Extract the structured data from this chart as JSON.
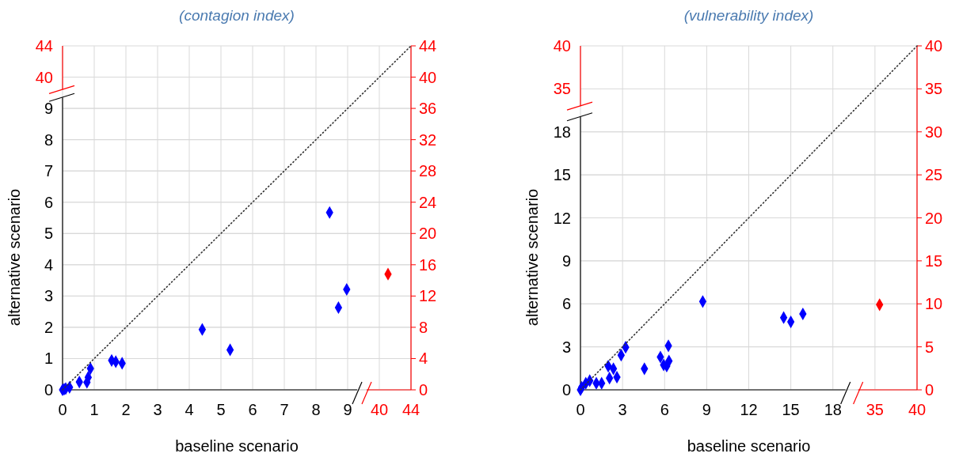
{
  "chart_data": [
    {
      "type": "scatter",
      "title": "(contagion index)",
      "xlabel": "baseline scenario",
      "y2label": "alternative scenario",
      "xlim": [
        0,
        11
      ],
      "xticks": [
        0,
        1,
        2,
        3,
        4,
        5,
        6,
        7,
        8,
        9
      ],
      "x2lim": [
        0,
        44
      ],
      "x2ticks": [
        40,
        44
      ],
      "ylim": [
        0,
        44
      ],
      "yticks": [
        0,
        4,
        8,
        12,
        16,
        20,
        24,
        28,
        32,
        36,
        40,
        44
      ],
      "y2lim": [
        0,
        11
      ],
      "y2ticks": [
        0,
        1,
        2,
        3,
        4,
        5,
        6,
        7,
        8,
        9
      ],
      "y3lim": [
        0,
        44
      ],
      "y3ticks": [
        40,
        44
      ],
      "grid": true,
      "marker": "diamond",
      "series": [
        {
          "type": "line",
          "color": "#333333",
          "line_style": "dotted",
          "marker": "none",
          "axis": "y2",
          "x": [
            0,
            11
          ],
          "values": [
            0,
            11
          ]
        },
        {
          "type": "scatter",
          "color": "#0000ff",
          "axis": "y2",
          "x": [
            0,
            0.05,
            0.1,
            0.22,
            0.53,
            0.77,
            0.81,
            0.88,
            1.55,
            1.68,
            1.88,
            4.41,
            5.29,
            8.43,
            8.71,
            8.97
          ],
          "values": [
            0,
            0.02,
            0.04,
            0.08,
            0.25,
            0.24,
            0.4,
            0.68,
            0.94,
            0.9,
            0.85,
            1.93,
            1.28,
            5.67,
            2.63,
            3.21
          ]
        },
        {
          "type": "scatter",
          "color": "#ff0000",
          "axis": "x2",
          "x": [
            41.1
          ],
          "values": [
            14.8
          ]
        }
      ]
    },
    {
      "type": "scatter",
      "title": "(vulnerability index)",
      "xlabel": "baseline scenario",
      "y2label": "alternative scenario",
      "xlim": [
        0,
        24
      ],
      "xticks": [
        0,
        3,
        6,
        9,
        12,
        15,
        18
      ],
      "x2lim": [
        0,
        40
      ],
      "x2ticks": [
        35,
        40
      ],
      "ylim": [
        0,
        40
      ],
      "yticks": [
        0,
        5,
        10,
        15,
        20,
        25,
        30,
        35,
        40
      ],
      "y2lim": [
        0,
        24
      ],
      "y2ticks": [
        0,
        3,
        6,
        9,
        12,
        15,
        18
      ],
      "y3lim": [
        0,
        40
      ],
      "y3ticks": [
        35,
        40
      ],
      "grid": true,
      "marker": "diamond",
      "series": [
        {
          "type": "line",
          "color": "#333333",
          "line_style": "dotted",
          "marker": "none",
          "axis": "y2",
          "x": [
            0,
            24
          ],
          "values": [
            0,
            24
          ]
        },
        {
          "type": "scatter",
          "color": "#0000ff",
          "axis": "y2",
          "x": [
            0,
            0.09,
            0.38,
            0.66,
            1.13,
            1.51,
            1.98,
            2.35,
            2.07,
            2.6,
            2.9,
            3.22,
            4.56,
            5.7,
            5.93,
            6.15,
            6.31,
            6.27,
            8.72,
            14.49,
            15.0,
            15.86
          ],
          "values": [
            0,
            0.18,
            0.46,
            0.64,
            0.46,
            0.46,
            1.65,
            1.47,
            0.82,
            0.88,
            2.42,
            2.97,
            1.47,
            2.29,
            1.74,
            1.66,
            2.01,
            3.07,
            6.16,
            5.04,
            4.74,
            5.3
          ]
        },
        {
          "type": "scatter",
          "color": "#ff0000",
          "axis": "x2",
          "x": [
            35.55
          ],
          "values": [
            9.9
          ]
        }
      ]
    }
  ]
}
